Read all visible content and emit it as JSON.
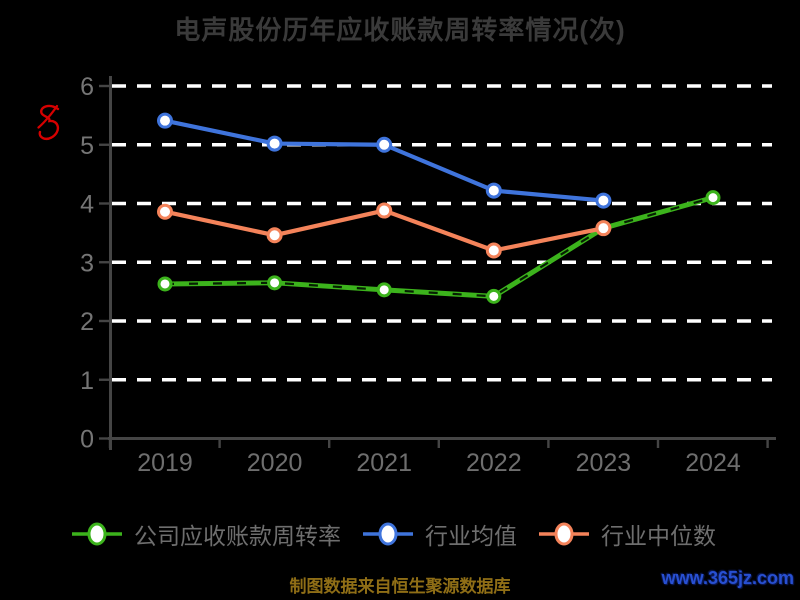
{
  "title": "电声股份历年应收账款周转率情况(次)",
  "y_axis_unit_mark": "次",
  "footer": {
    "source_text": "制图数据来自恒生聚源数据库",
    "watermark_text": "www.365jz.com"
  },
  "colors": {
    "background": "#000000",
    "title": "#3a3a3a",
    "gridline": "#ffffff",
    "axis_line": "#454545",
    "y_tick_label": "#757575",
    "x_tick_label": "#6e6e6e",
    "legend_text": "#6e6e6e",
    "footer_text": "#8f6e16",
    "watermark": "#2850d2",
    "unit_mark": "#d60000",
    "marker_fill": "#ffffff"
  },
  "chart_data": {
    "type": "line",
    "title": "电声股份历年应收账款周转率情况(次)",
    "categories": [
      "2019",
      "2020",
      "2021",
      "2022",
      "2023",
      "2024"
    ],
    "series": [
      {
        "name": "公司应收账款周转率",
        "color": "#3cb31c",
        "values": [
          2.63,
          2.65,
          2.53,
          2.42,
          3.58,
          4.1
        ]
      },
      {
        "name": "行业均值",
        "color": "#3f74dc",
        "values": [
          5.41,
          5.02,
          5.0,
          4.22,
          4.05
        ]
      },
      {
        "name": "行业中位数",
        "color": "#f4835a",
        "values": [
          3.86,
          3.46,
          3.88,
          3.2,
          3.58
        ]
      }
    ],
    "xlabel": "",
    "ylabel": "次",
    "ylim": [
      0,
      6
    ],
    "y_ticks": [
      0,
      1,
      2,
      3,
      4,
      5,
      6
    ],
    "grid": "horizontal-dashed-white",
    "legend_position": "bottom"
  }
}
